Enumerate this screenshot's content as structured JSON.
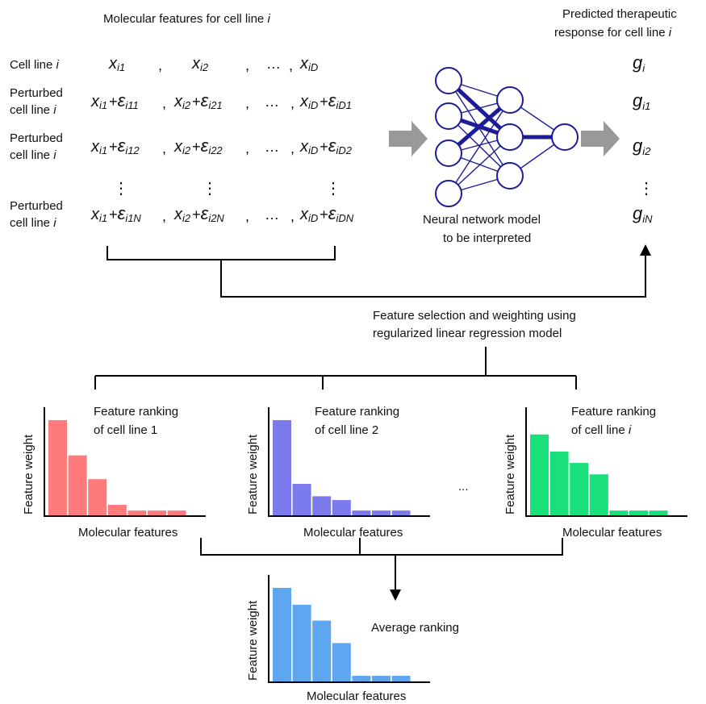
{
  "header": {
    "molecular": "Molecular features for cell line ",
    "molecular_i": "i",
    "predicted_line1": "Predicted therapeutic",
    "predicted_line2": "response for cell line ",
    "predicted_i": "i"
  },
  "rows": [
    {
      "label1": "Cell line ",
      "label1_i": "i",
      "label2": "",
      "label2_i": "",
      "g_sub": "i",
      "terms": [
        {
          "x": "x",
          "xs": "i1",
          "op": "",
          "e": "",
          "es": "",
          "sep": ","
        },
        {
          "x": "x",
          "xs": "i2",
          "op": "",
          "e": "",
          "es": "",
          "sep": ","
        },
        {
          "dots": "…",
          "sep": ","
        },
        {
          "x": "x",
          "xs": "iD",
          "op": "",
          "e": "",
          "es": "",
          "sep": ""
        }
      ]
    },
    {
      "label1": "Perturbed",
      "label1_i": "",
      "label2": "cell line ",
      "label2_i": "i",
      "g_sub": "i1",
      "terms": [
        {
          "x": "x",
          "xs": "i1",
          "op": "+",
          "e": "ε",
          "es": "i11",
          "sep": ","
        },
        {
          "x": "x",
          "xs": "i2",
          "op": "+",
          "e": "ε",
          "es": "i21",
          "sep": ","
        },
        {
          "dots": "…",
          "sep": ","
        },
        {
          "x": "x",
          "xs": "iD",
          "op": "+",
          "e": "ε",
          "es": "iD1",
          "sep": ""
        }
      ]
    },
    {
      "label1": "Perturbed",
      "label1_i": "",
      "label2": "cell line ",
      "label2_i": "i",
      "g_sub": "i2",
      "terms": [
        {
          "x": "x",
          "xs": "i1",
          "op": "+",
          "e": "ε",
          "es": "i12",
          "sep": ","
        },
        {
          "x": "x",
          "xs": "i2",
          "op": "+",
          "e": "ε",
          "es": "i22",
          "sep": ","
        },
        {
          "dots": "…",
          "sep": ","
        },
        {
          "x": "x",
          "xs": "iD",
          "op": "+",
          "e": "ε",
          "es": "iD2",
          "sep": ""
        }
      ]
    },
    {
      "label1": "Perturbed",
      "label1_i": "",
      "label2": "cell line ",
      "label2_i": "i",
      "g_sub": "iN",
      "terms": [
        {
          "x": "x",
          "xs": "i1",
          "op": "+",
          "e": "ε",
          "es": "i1N",
          "sep": ","
        },
        {
          "x": "x",
          "xs": "i2",
          "op": "+",
          "e": "ε",
          "es": "i2N",
          "sep": ","
        },
        {
          "dots": "…",
          "sep": ","
        },
        {
          "x": "x",
          "xs": "iD",
          "op": "+",
          "e": "ε",
          "es": "iDN",
          "sep": ""
        }
      ]
    }
  ],
  "g_symbol": "g",
  "vdots": "⋮",
  "nn": {
    "line1": "Neural network model",
    "line2": "to be interpreted"
  },
  "regression": {
    "line1": "Feature selection and weighting using",
    "line2": "regularized linear regression model"
  },
  "ellipsis": "...",
  "colors": {
    "red": "#ff7b7b",
    "purple": "#7b7bee",
    "green": "#19e07a",
    "blue": "#5ea6f0",
    "network": "#1c1c96",
    "arrow": "#999999"
  },
  "chart_data": [
    {
      "type": "bar",
      "title1": "Feature ranking",
      "title2": "of cell line 1",
      "title2_i": "",
      "xlabel": "Molecular features",
      "ylabel": "Feature weight",
      "color": "#ff7b7b",
      "values": [
        1.0,
        0.63,
        0.38,
        0.11,
        0.05,
        0.05,
        0.05
      ],
      "ylim": [
        0,
        1.0
      ]
    },
    {
      "type": "bar",
      "title1": "Feature ranking",
      "title2": "of cell line 2",
      "title2_i": "",
      "xlabel": "Molecular features",
      "ylabel": "Feature weight",
      "color": "#7b7bee",
      "values": [
        1.0,
        0.33,
        0.2,
        0.16,
        0.05,
        0.05,
        0.05
      ],
      "ylim": [
        0,
        1.0
      ]
    },
    {
      "type": "bar",
      "title1": "Feature ranking",
      "title2": "of cell line ",
      "title2_i": "i",
      "xlabel": "Molecular features",
      "ylabel": "Feature weight",
      "color": "#19e07a",
      "values": [
        0.85,
        0.67,
        0.55,
        0.43,
        0.05,
        0.05,
        0.05
      ],
      "ylim": [
        0,
        1.0
      ]
    },
    {
      "type": "bar",
      "title1": "Average ranking",
      "title2": "",
      "title2_i": "",
      "xlabel": "Molecular features",
      "ylabel": "Feature weight",
      "color": "#5ea6f0",
      "values": [
        1.0,
        0.82,
        0.65,
        0.41,
        0.06,
        0.06,
        0.06
      ],
      "ylim": [
        0,
        1.0
      ]
    }
  ]
}
